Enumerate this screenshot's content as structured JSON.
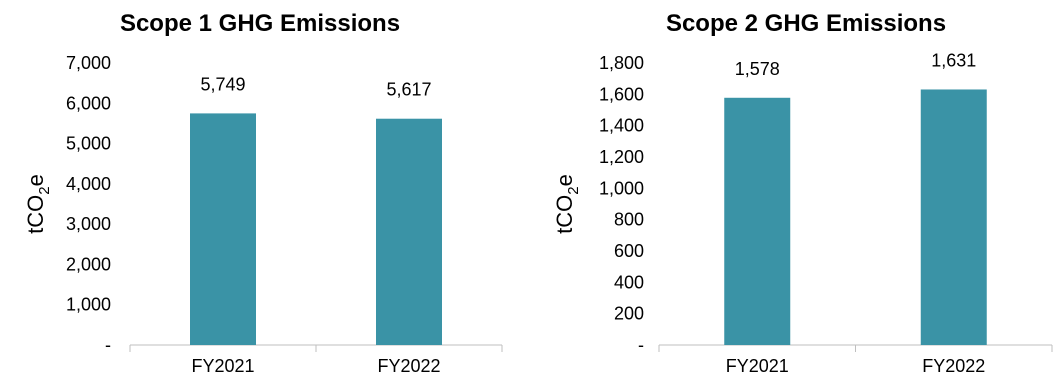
{
  "chart_data": [
    {
      "type": "bar",
      "title": "Scope 1 GHG Emissions",
      "ylabel": {
        "main": "tCO",
        "sub": "2",
        "suffix": "e"
      },
      "categories": [
        "FY2021",
        "FY2022"
      ],
      "values": [
        5749,
        5617
      ],
      "value_labels": [
        "5,749",
        "5,617"
      ],
      "ylim": [
        0,
        7000
      ],
      "yticks": [
        0,
        1000,
        2000,
        3000,
        4000,
        5000,
        6000,
        7000
      ],
      "ytick_labels": [
        "-",
        "1,000",
        "2,000",
        "3,000",
        "4,000",
        "5,000",
        "6,000",
        "7,000"
      ],
      "bar_color": "#3a93a6",
      "grid": false,
      "legend": "none"
    },
    {
      "type": "bar",
      "title": "Scope 2 GHG Emissions",
      "ylabel": {
        "main": "tCO",
        "sub": "2",
        "suffix": "e"
      },
      "categories": [
        "FY2021",
        "FY2022"
      ],
      "values": [
        1578,
        1631
      ],
      "value_labels": [
        "1,578",
        "1,631"
      ],
      "ylim": [
        0,
        1800
      ],
      "yticks": [
        0,
        200,
        400,
        600,
        800,
        1000,
        1200,
        1400,
        1600,
        1800
      ],
      "ytick_labels": [
        "-",
        "200",
        "400",
        "600",
        "800",
        "1,000",
        "1,200",
        "1,400",
        "1,600",
        "1,800"
      ],
      "bar_color": "#3a93a6",
      "grid": false,
      "legend": "none"
    }
  ]
}
